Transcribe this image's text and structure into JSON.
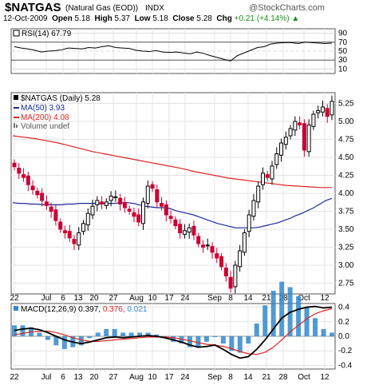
{
  "header": {
    "symbol": "$NATGAS",
    "name": "(Natural Gas (EOD))",
    "exchange": "INDX",
    "watermark": "@StockCharts.com",
    "date": "12-Oct-2009",
    "open_label": "Open",
    "open": "5.18",
    "high_label": "High",
    "high": "5.37",
    "low_label": "Low",
    "low": "5.18",
    "close_label": "Close",
    "close": "5.28",
    "chg_label": "Chg",
    "chg": "+0.21 (+4.14%)",
    "chg_arrow": "▲"
  },
  "colors": {
    "up": "#000000",
    "down": "#cc0033",
    "ma50": "#1a2a99",
    "ma200": "#dd2222",
    "macd": "#000000",
    "signal": "#dd2222",
    "hist": "#3388cc",
    "rsi": "#000000"
  },
  "rsi_panel": {
    "legend": "RSI(14) 67.79",
    "levels": [
      "90",
      "70",
      "50",
      "30",
      "10"
    ]
  },
  "price_panel": {
    "legend": "$NATGAS (Daily) 5.28",
    "ma50_legend": "MA(50) 3.93",
    "ma200_legend": "MA(200) 4.08",
    "volume_legend": "Volume undef",
    "y_ticks": [
      "5.25",
      "5.00",
      "4.75",
      "4.50",
      "4.25",
      "4.00",
      "3.75",
      "3.50",
      "3.25",
      "3.00",
      "2.75"
    ]
  },
  "macd_panel": {
    "legend_label": "MACD(12,26,9)",
    "macd_value": "0.397,",
    "signal_value": "0.376,",
    "hist_value": "0.021",
    "y_ticks": [
      "0.4",
      "0.2",
      "0.0",
      "-0.2",
      "-0.4"
    ]
  },
  "x_labels": [
    "22",
    "Jul",
    "6",
    "13",
    "20",
    "27",
    "Aug",
    "10",
    "17",
    "24",
    "Sep",
    "8",
    "14",
    "21",
    "28",
    "Oct",
    "12"
  ],
  "chart_data": {
    "type": "candlestick",
    "title": "$NATGAS (Natural Gas (EOD)) INDX",
    "price_close": [
      4.37,
      4.28,
      4.22,
      4.12,
      4.05,
      3.98,
      3.9,
      3.83,
      3.75,
      3.62,
      3.5,
      3.45,
      3.38,
      3.3,
      3.45,
      3.58,
      3.72,
      3.82,
      3.9,
      3.85,
      3.88,
      3.96,
      3.95,
      3.85,
      3.8,
      3.75,
      3.68,
      3.6,
      3.88,
      4.1,
      4.07,
      3.88,
      3.82,
      3.7,
      3.65,
      3.55,
      3.45,
      3.48,
      3.52,
      3.42,
      3.3,
      3.25,
      3.28,
      3.18,
      3.1,
      2.98,
      2.85,
      2.68,
      3.0,
      3.2,
      3.45,
      3.7,
      3.9,
      4.1,
      4.28,
      4.22,
      4.38,
      4.55,
      4.7,
      4.78,
      4.9,
      5.0,
      4.95,
      4.6,
      4.95,
      5.1,
      5.15,
      5.2,
      5.07,
      5.28
    ],
    "ma50": [
      3.87,
      3.86,
      3.86,
      3.85,
      3.85,
      3.84,
      3.84,
      3.84,
      3.84,
      3.85,
      3.85,
      3.86,
      3.86,
      3.86,
      3.86,
      3.86,
      3.86,
      3.86,
      3.87,
      3.87,
      3.86,
      3.84,
      3.82,
      3.81,
      3.8,
      3.8,
      3.79,
      3.76,
      3.74,
      3.72,
      3.7,
      3.67,
      3.64,
      3.61,
      3.58,
      3.56,
      3.54,
      3.52,
      3.52,
      3.52,
      3.52,
      3.53,
      3.55,
      3.57,
      3.59,
      3.62,
      3.65,
      3.69,
      3.72,
      3.76,
      3.8,
      3.85,
      3.9,
      3.93
    ],
    "ma200": [
      4.8,
      4.78,
      4.76,
      4.73,
      4.7,
      4.66,
      4.62,
      4.58,
      4.55,
      4.52,
      4.49,
      4.46,
      4.43,
      4.4,
      4.37,
      4.34,
      4.3,
      4.27,
      4.24,
      4.21,
      4.19,
      4.17,
      4.15,
      4.13,
      4.11,
      4.1,
      4.09,
      4.08,
      4.08
    ],
    "rsi": [
      60,
      57,
      55,
      52,
      48,
      50,
      51,
      53,
      57,
      56,
      55,
      58,
      57,
      60,
      62,
      58,
      57,
      56,
      52,
      50,
      49,
      51,
      48,
      47,
      48,
      46,
      44,
      48,
      45,
      40,
      36,
      32,
      28,
      40,
      46,
      52,
      58,
      60,
      66,
      68,
      69,
      69,
      67,
      70,
      69,
      68,
      67,
      68
    ],
    "macd": [
      0.08,
      0.1,
      0.11,
      0.09,
      0.05,
      0.0,
      -0.05,
      -0.08,
      -0.1,
      -0.08,
      -0.05,
      -0.02,
      -0.01,
      -0.02,
      -0.01,
      0.0,
      0.01,
      0.0,
      -0.02,
      -0.05,
      -0.08,
      -0.12,
      -0.15,
      -0.14,
      -0.12,
      -0.18,
      -0.25,
      -0.3,
      -0.28,
      -0.18,
      -0.05,
      0.1,
      0.25,
      0.33,
      0.37,
      0.4,
      0.41,
      0.39,
      0.4
    ],
    "signal": [
      0.02,
      0.04,
      0.06,
      0.07,
      0.07,
      0.05,
      0.02,
      -0.02,
      -0.05,
      -0.07,
      -0.07,
      -0.06,
      -0.05,
      -0.04,
      -0.03,
      -0.02,
      -0.01,
      -0.01,
      -0.01,
      -0.02,
      -0.04,
      -0.06,
      -0.09,
      -0.11,
      -0.12,
      -0.14,
      -0.17,
      -0.21,
      -0.24,
      -0.25,
      -0.22,
      -0.15,
      -0.05,
      0.06,
      0.15,
      0.24,
      0.31,
      0.35,
      0.38
    ],
    "ylim_price": [
      2.6,
      5.4
    ],
    "ylim_rsi": [
      0,
      100
    ],
    "ylim_macd": [
      -0.45,
      0.45
    ]
  }
}
